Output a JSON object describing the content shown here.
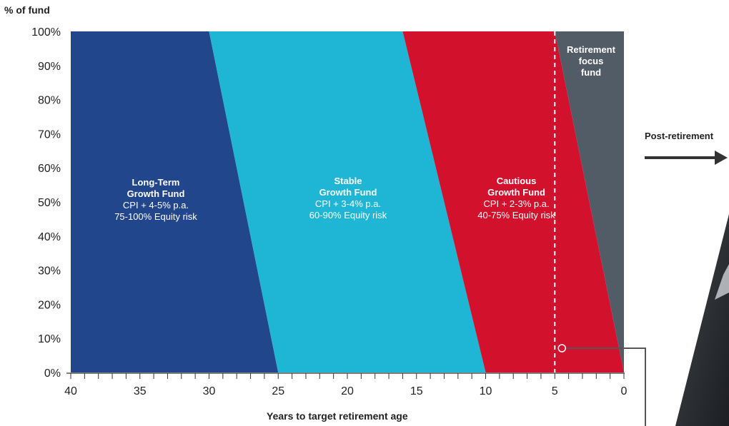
{
  "chart_data": {
    "type": "area",
    "ylabel": "% of fund",
    "xlabel": "Years to target retirement age",
    "x_ticks": [
      "40",
      "35",
      "30",
      "25",
      "20",
      "15",
      "10",
      "5",
      "0"
    ],
    "y_ticks": [
      "0%",
      "10%",
      "20%",
      "30%",
      "40%",
      "50%",
      "60%",
      "70%",
      "80%",
      "90%",
      "100%"
    ],
    "xlim": [
      40,
      0
    ],
    "ylim": [
      0,
      100
    ],
    "series": [
      {
        "name": "Long-Term Growth Fund",
        "line1": "Long-Term",
        "line2": "Growth Fund",
        "desc1": "CPI + 4-5% p.a.",
        "desc2": "75-100% Equity risk",
        "color": "#22468c",
        "right_boundary": [
          [
            30,
            100
          ],
          [
            25,
            0
          ]
        ]
      },
      {
        "name": "Stable Growth Fund",
        "line1": "Stable",
        "line2": "Growth Fund",
        "desc1": "CPI + 3-4% p.a.",
        "desc2": "60-90% Equity risk",
        "color": "#1fb6d6",
        "right_boundary": [
          [
            16,
            100
          ],
          [
            10,
            0
          ]
        ]
      },
      {
        "name": "Cautious Growth Fund",
        "line1": "Cautious",
        "line2": "Growth Fund",
        "desc1": "CPI + 2-3% p.a.",
        "desc2": "40-75% Equity risk",
        "color": "#d2112c",
        "right_boundary": [
          [
            5,
            100
          ],
          [
            0,
            0
          ]
        ]
      },
      {
        "name": "Retirement focus fund",
        "line1": "Retirement",
        "line2": "focus",
        "line3": "fund",
        "color": "#515c66"
      }
    ],
    "retirement_marker_year": 5
  },
  "annotation": {
    "post_retirement": "Post-retirement"
  }
}
